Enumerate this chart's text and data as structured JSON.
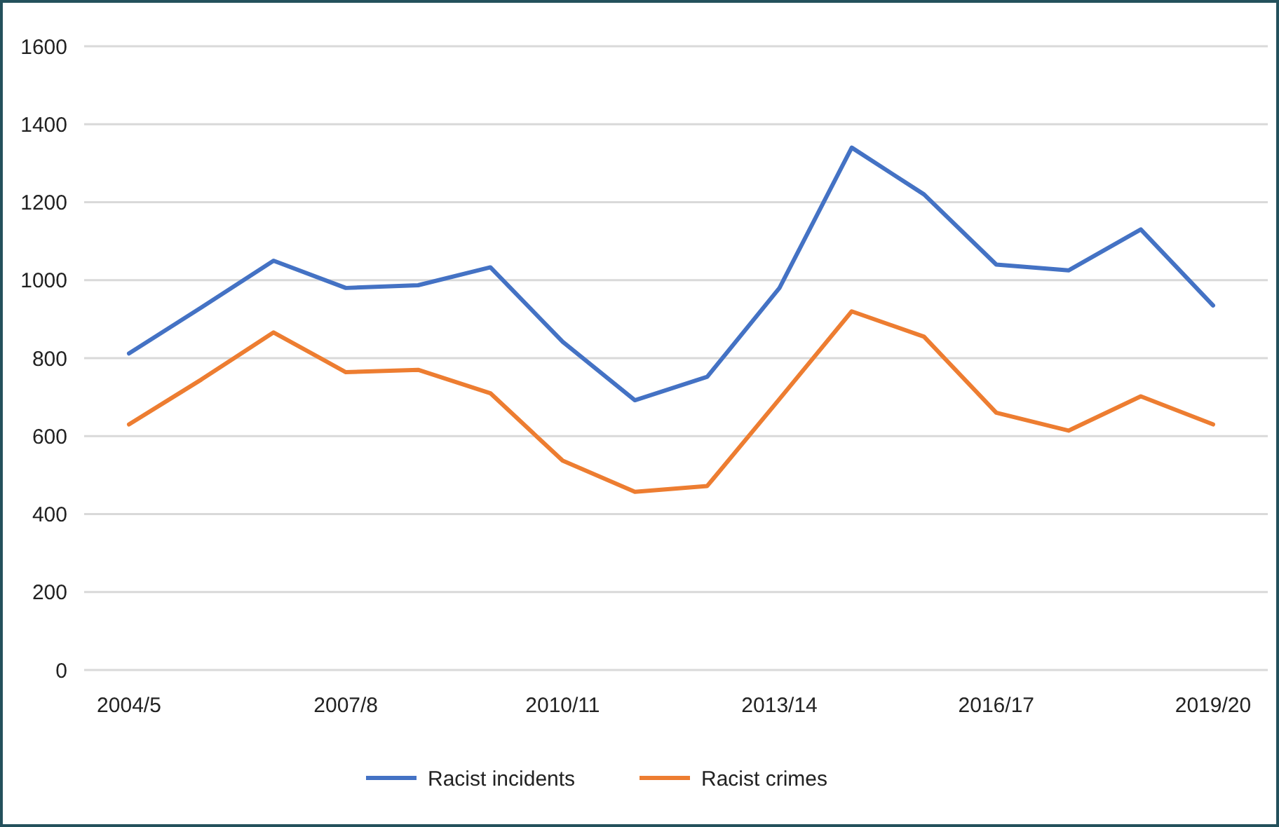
{
  "chart_data": {
    "type": "line",
    "categories": [
      "2004/5",
      null,
      null,
      "2007/8",
      null,
      null,
      "2010/11",
      null,
      null,
      "2013/14",
      null,
      null,
      "2016/17",
      null,
      null,
      "2019/20"
    ],
    "series": [
      {
        "name": "Racist incidents",
        "color": "#4472c4",
        "values": [
          812,
          930,
          1050,
          980,
          987,
          1033,
          842,
          692,
          752,
          980,
          1340,
          1220,
          1040,
          1025,
          1130,
          935
        ]
      },
      {
        "name": "Racist crimes",
        "color": "#ed7d31",
        "values": [
          630,
          745,
          866,
          764,
          770,
          710,
          537,
          457,
          472,
          695,
          920,
          855,
          660,
          614,
          702,
          630
        ]
      }
    ],
    "ylim": [
      0,
      1600
    ],
    "yticks": [
      0,
      200,
      400,
      600,
      800,
      1000,
      1200,
      1400,
      1600
    ],
    "grid": "y",
    "legend": "bottom",
    "marker": "none",
    "line_style": "solid"
  }
}
